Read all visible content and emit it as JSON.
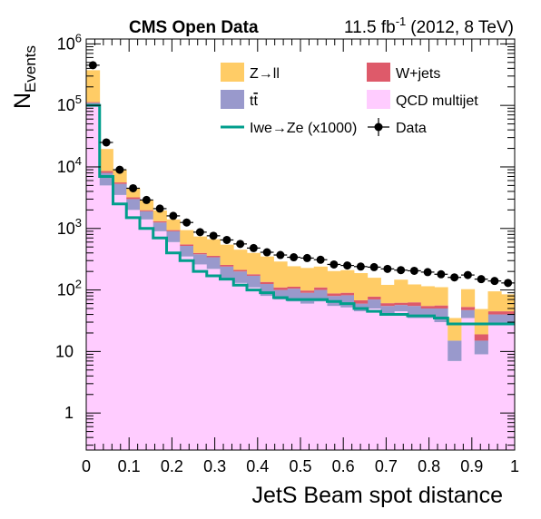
{
  "header": {
    "experiment": "CMS Open Data",
    "lumi": "11.5",
    "lumi_unit": "fb",
    "lumi_exp": "-1",
    "conditions": "(2012, 8 TeV)"
  },
  "axes": {
    "ylabel_main": "N",
    "ylabel_sub": "Events",
    "xlabel": "JetS Beam spot distance"
  },
  "legend": {
    "zll": "Z→ll",
    "wjets": "W+jets",
    "ttbar_t": "t",
    "ttbar_tbar": "t",
    "qcd": "QCD multijet",
    "signal": "Iwe→Ze (x1000)",
    "data": "Data"
  },
  "colors": {
    "zll": "#ffcc66",
    "wjets": "#de5a6a",
    "ttbar": "#9999cc",
    "qcd": "#ffccff",
    "signal": "#009e8c",
    "data": "#000000"
  },
  "chart_data": {
    "type": "bar",
    "stacked": true,
    "yscale": "log",
    "xlim": [
      0,
      1
    ],
    "ylim": [
      0.25,
      1200000
    ],
    "xlabel": "JetS Beam spot distance",
    "ylabel": "N_Events",
    "x_ticks": [
      0,
      0.1,
      0.2,
      0.3,
      0.4,
      0.5,
      0.6,
      0.7,
      0.8,
      0.9,
      1
    ],
    "x_tick_labels": [
      "0",
      "0.1",
      "0.2",
      "0.3",
      "0.4",
      "0.5",
      "0.6",
      "0.7",
      "0.8",
      "0.9",
      "1"
    ],
    "y_ticks": [
      {
        "value": 1,
        "base": "1",
        "exp": ""
      },
      {
        "value": 10,
        "base": "10",
        "exp": ""
      },
      {
        "value": 100,
        "base": "10",
        "exp": "2"
      },
      {
        "value": 1000,
        "base": "10",
        "exp": "3"
      },
      {
        "value": 10000,
        "base": "10",
        "exp": "4"
      },
      {
        "value": 100000,
        "base": "10",
        "exp": "5"
      },
      {
        "value": 1000000,
        "base": "10",
        "exp": "6"
      }
    ],
    "bin_width": 0.03125,
    "bin_low_edges": [
      0,
      0.03125,
      0.0625,
      0.09375,
      0.125,
      0.15625,
      0.1875,
      0.21875,
      0.25,
      0.28125,
      0.3125,
      0.34375,
      0.375,
      0.40625,
      0.4375,
      0.46875,
      0.5,
      0.53125,
      0.5625,
      0.59375,
      0.625,
      0.65625,
      0.6875,
      0.71875,
      0.75,
      0.78125,
      0.8125,
      0.84375,
      0.875,
      0.90625,
      0.9375,
      0.96875
    ],
    "series": [
      {
        "name": "QCD multijet",
        "color": "#ffccff",
        "values": [
          100000,
          5000,
          3500,
          2000,
          1400,
          900,
          600,
          350,
          260,
          220,
          150,
          130,
          110,
          80,
          70,
          65,
          60,
          65,
          55,
          52,
          45,
          50,
          40,
          45,
          35,
          35,
          30,
          7,
          35,
          9,
          28,
          28
        ]
      },
      {
        "name": "t̅t",
        "color": "#9999cc",
        "values": [
          10000,
          3000,
          1800,
          1000,
          500,
          350,
          300,
          170,
          120,
          120,
          90,
          70,
          60,
          45,
          30,
          40,
          30,
          35,
          25,
          30,
          15,
          20,
          15,
          12,
          20,
          15,
          20,
          8,
          12,
          6,
          12,
          12
        ]
      },
      {
        "name": "W+jets",
        "color": "#de5a6a",
        "values": [
          3000,
          600,
          300,
          200,
          80,
          60,
          40,
          30,
          20,
          18,
          15,
          12,
          10,
          10,
          10,
          8,
          8,
          10,
          8,
          8,
          8,
          8,
          6,
          5,
          8,
          5,
          6,
          0,
          6,
          4,
          5,
          5
        ]
      },
      {
        "name": "Z→ll",
        "color": "#ffcc66",
        "values": [
          260000,
          11000,
          3500,
          1300,
          900,
          650,
          460,
          390,
          340,
          310,
          290,
          240,
          220,
          215,
          180,
          130,
          130,
          130,
          115,
          120,
          120,
          80,
          60,
          85,
          60,
          60,
          55,
          20,
          50,
          30,
          50,
          40
        ]
      }
    ],
    "signal": {
      "name": "Iwe→Ze (x1000)",
      "color": "#009e8c",
      "values": [
        100000,
        7000,
        2500,
        1500,
        1000,
        700,
        400,
        300,
        200,
        170,
        150,
        120,
        100,
        90,
        75,
        70,
        70,
        70,
        65,
        60,
        50,
        45,
        40,
        40,
        38,
        38,
        35,
        28,
        28,
        28,
        28,
        28
      ]
    },
    "data_points": {
      "name": "Data",
      "color": "#000000",
      "values": [
        450000,
        25000,
        9000,
        4500,
        2900,
        2100,
        1600,
        1250,
        870,
        760,
        650,
        560,
        480,
        410,
        370,
        340,
        330,
        310,
        260,
        250,
        240,
        235,
        220,
        210,
        205,
        195,
        180,
        160,
        175,
        150,
        140,
        130
      ]
    }
  }
}
